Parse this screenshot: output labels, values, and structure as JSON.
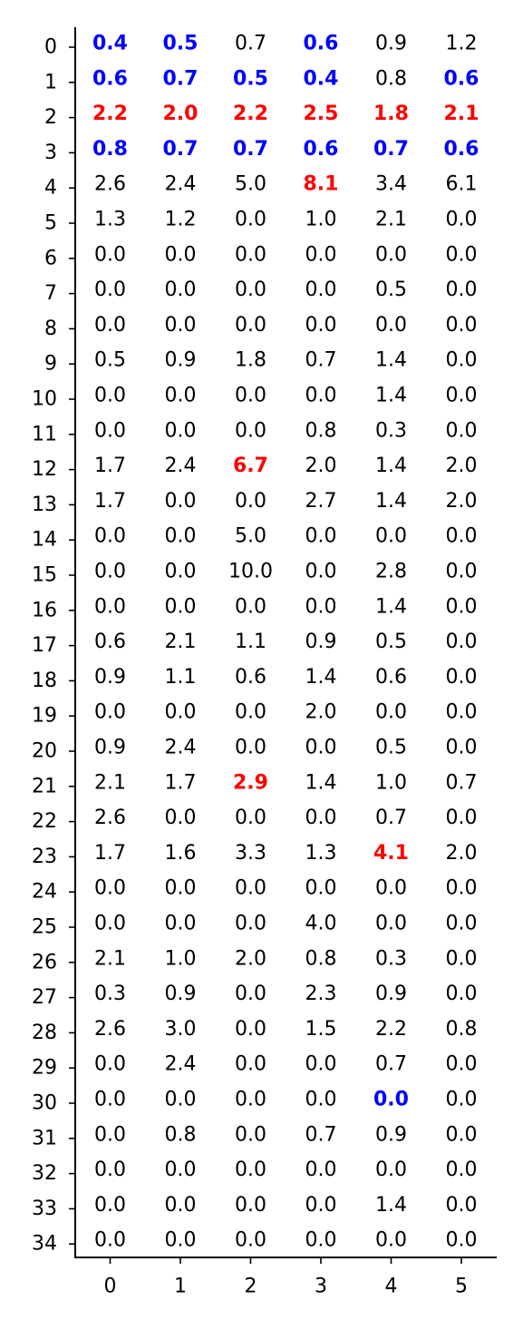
{
  "colors": {
    "normal": "#000000",
    "high": "#ff0000",
    "low": "#0000ff"
  },
  "chart_data": {
    "type": "table",
    "columns": [
      "0",
      "1",
      "2",
      "3",
      "4",
      "5"
    ],
    "rows": [
      "0",
      "1",
      "2",
      "3",
      "4",
      "5",
      "6",
      "7",
      "8",
      "9",
      "10",
      "11",
      "12",
      "13",
      "14",
      "15",
      "16",
      "17",
      "18",
      "19",
      "20",
      "21",
      "22",
      "23",
      "24",
      "25",
      "26",
      "27",
      "28",
      "29",
      "30",
      "31",
      "32",
      "33",
      "34"
    ],
    "values": [
      [
        "0.4",
        "0.5",
        "0.7",
        "0.6",
        "0.9",
        "1.2"
      ],
      [
        "0.6",
        "0.7",
        "0.5",
        "0.4",
        "0.8",
        "0.6"
      ],
      [
        "2.2",
        "2.0",
        "2.2",
        "2.5",
        "1.8",
        "2.1"
      ],
      [
        "0.8",
        "0.7",
        "0.7",
        "0.6",
        "0.7",
        "0.6"
      ],
      [
        "2.6",
        "2.4",
        "5.0",
        "8.1",
        "3.4",
        "6.1"
      ],
      [
        "1.3",
        "1.2",
        "0.0",
        "1.0",
        "2.1",
        "0.0"
      ],
      [
        "0.0",
        "0.0",
        "0.0",
        "0.0",
        "0.0",
        "0.0"
      ],
      [
        "0.0",
        "0.0",
        "0.0",
        "0.0",
        "0.5",
        "0.0"
      ],
      [
        "0.0",
        "0.0",
        "0.0",
        "0.0",
        "0.0",
        "0.0"
      ],
      [
        "0.5",
        "0.9",
        "1.8",
        "0.7",
        "1.4",
        "0.0"
      ],
      [
        "0.0",
        "0.0",
        "0.0",
        "0.0",
        "1.4",
        "0.0"
      ],
      [
        "0.0",
        "0.0",
        "0.0",
        "0.8",
        "0.3",
        "0.0"
      ],
      [
        "1.7",
        "2.4",
        "6.7",
        "2.0",
        "1.4",
        "2.0"
      ],
      [
        "1.7",
        "0.0",
        "0.0",
        "2.7",
        "1.4",
        "2.0"
      ],
      [
        "0.0",
        "0.0",
        "5.0",
        "0.0",
        "0.0",
        "0.0"
      ],
      [
        "0.0",
        "0.0",
        "10.0",
        "0.0",
        "2.8",
        "0.0"
      ],
      [
        "0.0",
        "0.0",
        "0.0",
        "0.0",
        "1.4",
        "0.0"
      ],
      [
        "0.6",
        "2.1",
        "1.1",
        "0.9",
        "0.5",
        "0.0"
      ],
      [
        "0.9",
        "1.1",
        "0.6",
        "1.4",
        "0.6",
        "0.0"
      ],
      [
        "0.0",
        "0.0",
        "0.0",
        "2.0",
        "0.0",
        "0.0"
      ],
      [
        "0.9",
        "2.4",
        "0.0",
        "0.0",
        "0.5",
        "0.0"
      ],
      [
        "2.1",
        "1.7",
        "2.9",
        "1.4",
        "1.0",
        "0.7"
      ],
      [
        "2.6",
        "0.0",
        "0.0",
        "0.0",
        "0.7",
        "0.0"
      ],
      [
        "1.7",
        "1.6",
        "3.3",
        "1.3",
        "4.1",
        "2.0"
      ],
      [
        "0.0",
        "0.0",
        "0.0",
        "0.0",
        "0.0",
        "0.0"
      ],
      [
        "0.0",
        "0.0",
        "0.0",
        "4.0",
        "0.0",
        "0.0"
      ],
      [
        "2.1",
        "1.0",
        "2.0",
        "0.8",
        "0.3",
        "0.0"
      ],
      [
        "0.3",
        "0.9",
        "0.0",
        "2.3",
        "0.9",
        "0.0"
      ],
      [
        "2.6",
        "3.0",
        "0.0",
        "1.5",
        "2.2",
        "0.8"
      ],
      [
        "0.0",
        "2.4",
        "0.0",
        "0.0",
        "0.7",
        "0.0"
      ],
      [
        "0.0",
        "0.0",
        "0.0",
        "0.0",
        "0.0",
        "0.0"
      ],
      [
        "0.0",
        "0.8",
        "0.0",
        "0.7",
        "0.9",
        "0.0"
      ],
      [
        "0.0",
        "0.0",
        "0.0",
        "0.0",
        "0.0",
        "0.0"
      ],
      [
        "0.0",
        "0.0",
        "0.0",
        "0.0",
        "1.4",
        "0.0"
      ],
      [
        "0.0",
        "0.0",
        "0.0",
        "0.0",
        "0.0",
        "0.0"
      ]
    ],
    "styles": [
      [
        "low",
        "low",
        "normal",
        "low",
        "normal",
        "normal"
      ],
      [
        "low",
        "low",
        "low",
        "low",
        "normal",
        "low"
      ],
      [
        "high",
        "high",
        "high",
        "high",
        "high",
        "high"
      ],
      [
        "low",
        "low",
        "low",
        "low",
        "low",
        "low"
      ],
      [
        "normal",
        "normal",
        "normal",
        "high",
        "normal",
        "normal"
      ],
      [
        "normal",
        "normal",
        "normal",
        "normal",
        "normal",
        "normal"
      ],
      [
        "normal",
        "normal",
        "normal",
        "normal",
        "normal",
        "normal"
      ],
      [
        "normal",
        "normal",
        "normal",
        "normal",
        "normal",
        "normal"
      ],
      [
        "normal",
        "normal",
        "normal",
        "normal",
        "normal",
        "normal"
      ],
      [
        "normal",
        "normal",
        "normal",
        "normal",
        "normal",
        "normal"
      ],
      [
        "normal",
        "normal",
        "normal",
        "normal",
        "normal",
        "normal"
      ],
      [
        "normal",
        "normal",
        "normal",
        "normal",
        "normal",
        "normal"
      ],
      [
        "normal",
        "normal",
        "high",
        "normal",
        "normal",
        "normal"
      ],
      [
        "normal",
        "normal",
        "normal",
        "normal",
        "normal",
        "normal"
      ],
      [
        "normal",
        "normal",
        "normal",
        "normal",
        "normal",
        "normal"
      ],
      [
        "normal",
        "normal",
        "normal",
        "normal",
        "normal",
        "normal"
      ],
      [
        "normal",
        "normal",
        "normal",
        "normal",
        "normal",
        "normal"
      ],
      [
        "normal",
        "normal",
        "normal",
        "normal",
        "normal",
        "normal"
      ],
      [
        "normal",
        "normal",
        "normal",
        "normal",
        "normal",
        "normal"
      ],
      [
        "normal",
        "normal",
        "normal",
        "normal",
        "normal",
        "normal"
      ],
      [
        "normal",
        "normal",
        "normal",
        "normal",
        "normal",
        "normal"
      ],
      [
        "normal",
        "normal",
        "high",
        "normal",
        "normal",
        "normal"
      ],
      [
        "normal",
        "normal",
        "normal",
        "normal",
        "normal",
        "normal"
      ],
      [
        "normal",
        "normal",
        "normal",
        "normal",
        "high",
        "normal"
      ],
      [
        "normal",
        "normal",
        "normal",
        "normal",
        "normal",
        "normal"
      ],
      [
        "normal",
        "normal",
        "normal",
        "normal",
        "normal",
        "normal"
      ],
      [
        "normal",
        "normal",
        "normal",
        "normal",
        "normal",
        "normal"
      ],
      [
        "normal",
        "normal",
        "normal",
        "normal",
        "normal",
        "normal"
      ],
      [
        "normal",
        "normal",
        "normal",
        "normal",
        "normal",
        "normal"
      ],
      [
        "normal",
        "normal",
        "normal",
        "normal",
        "normal",
        "normal"
      ],
      [
        "normal",
        "normal",
        "normal",
        "normal",
        "low",
        "normal"
      ],
      [
        "normal",
        "normal",
        "normal",
        "normal",
        "normal",
        "normal"
      ],
      [
        "normal",
        "normal",
        "normal",
        "normal",
        "normal",
        "normal"
      ],
      [
        "normal",
        "normal",
        "normal",
        "normal",
        "normal",
        "normal"
      ],
      [
        "normal",
        "normal",
        "normal",
        "normal",
        "normal",
        "normal"
      ]
    ],
    "title": "",
    "xlabel": "",
    "ylabel": "",
    "grid": false,
    "legend": "none"
  }
}
